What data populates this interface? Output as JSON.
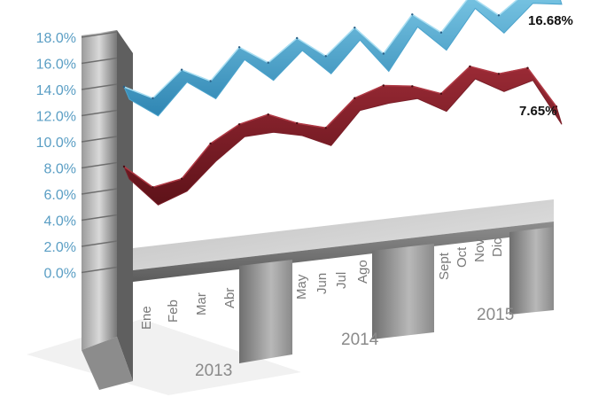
{
  "chart_data": {
    "type": "area",
    "y_ticks": [
      "18.0%",
      "16.0%",
      "14.0%",
      "12.0%",
      "10.0%",
      "8.0%",
      "6.0%",
      "4.0%",
      "2.0%",
      "0.0%"
    ],
    "ylim": [
      0,
      18
    ],
    "month_labels": [
      "Ene",
      "Feb",
      "Mar",
      "Abr",
      "May",
      "Jun",
      "Jul",
      "Ago",
      "Sept",
      "Oct",
      "Nov",
      "Dic"
    ],
    "year_labels": [
      "2013",
      "2014",
      "2015"
    ],
    "series": [
      {
        "color": "#4ba3cc",
        "values": [
          12.8,
          11.7,
          13.6,
          12.5,
          14.8,
          13.4,
          15.0,
          13.4,
          15.3,
          13.1,
          15.8,
          14.2,
          16.7,
          15.0,
          16.6,
          16.68
        ],
        "end_label": "16.68%"
      },
      {
        "color": "#7a1e28",
        "values": [
          6.8,
          5.0,
          5.4,
          7.8,
          9.0,
          9.5,
          8.6,
          8.0,
          10.0,
          10.7,
          10.4,
          9.6,
          11.4,
          10.6,
          10.8,
          7.65
        ],
        "end_label": "7.65%"
      }
    ]
  }
}
